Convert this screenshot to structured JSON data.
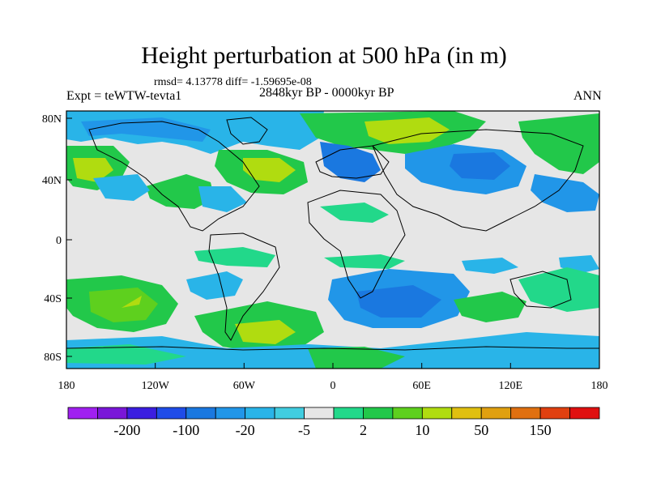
{
  "title": "Height perturbation at 500 hPa (in m)",
  "stats": "rmsd= 4.13778 diff= -1.59695e-08",
  "experiment": "Expt = teWTW-tevta1",
  "period": "2848kyr BP - 0000kyr BP",
  "season": "ANN",
  "y_ticks": [
    "80N",
    "40N",
    "0",
    "40S",
    "80S"
  ],
  "x_ticks": [
    "180",
    "120W",
    "60W",
    "0",
    "60E",
    "120E",
    "180"
  ],
  "colorbar": {
    "colors": [
      "#a020f0",
      "#7a16d8",
      "#3b1ee0",
      "#1f4ce8",
      "#1a78e0",
      "#2196e8",
      "#29b4e8",
      "#41cde0",
      "#e6e6e6",
      "#22d88a",
      "#22c84a",
      "#5ed01e",
      "#b0dc10",
      "#e0c010",
      "#e0a010",
      "#e07010",
      "#e04010",
      "#e01010"
    ],
    "labels": [
      "-200",
      "-100",
      "-20",
      "-5",
      "2",
      "10",
      "50",
      "150"
    ]
  },
  "palette": {
    "neutral": "#e6e6e6",
    "teal": "#22d88a",
    "green": "#22c84a",
    "lime": "#5ed01e",
    "yellowgreen": "#b0dc10",
    "lightblue": "#29b4e8",
    "cyan": "#41cde0",
    "blue": "#1a78e0",
    "midblue": "#2196e8"
  }
}
